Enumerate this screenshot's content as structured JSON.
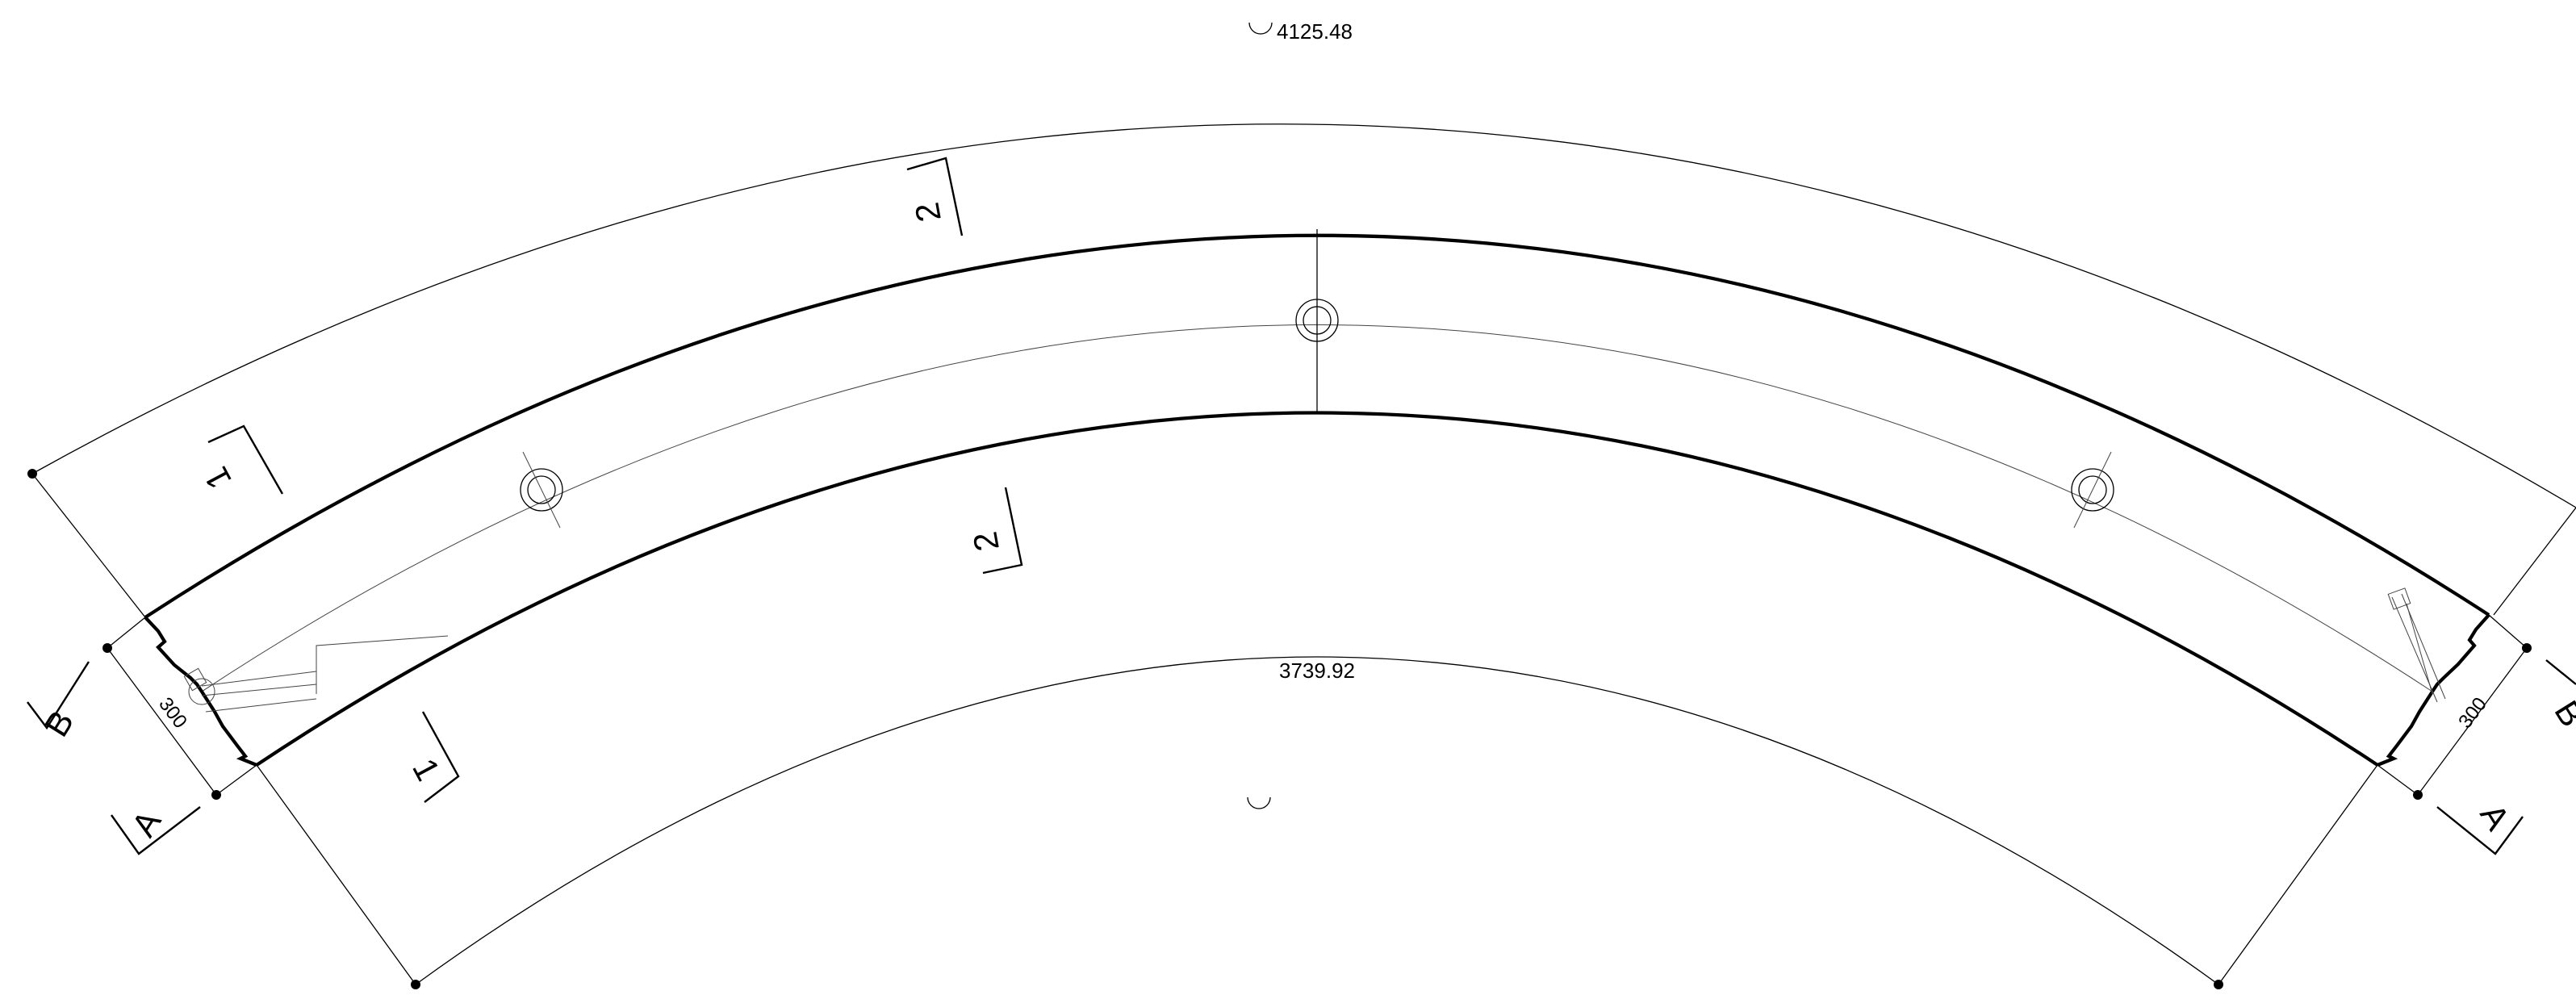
{
  "dimensions": {
    "outer_arc_length": "4125.48",
    "inner_arc_length": "3739.92",
    "left_width": "300",
    "right_width": "300"
  },
  "section_marks": {
    "section_1": "1",
    "section_2": "2",
    "section_a": "A",
    "section_b": "B"
  },
  "colors": {
    "line": "#000000",
    "background": "#ffffff"
  }
}
